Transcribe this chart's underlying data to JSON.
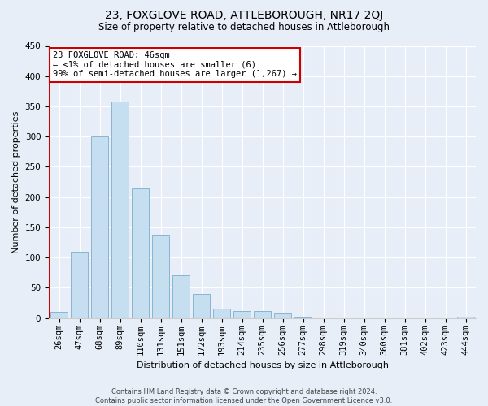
{
  "title": "23, FOXGLOVE ROAD, ATTLEBOROUGH, NR17 2QJ",
  "subtitle": "Size of property relative to detached houses in Attleborough",
  "xlabel": "Distribution of detached houses by size in Attleborough",
  "ylabel": "Number of detached properties",
  "footer_lines": [
    "Contains HM Land Registry data © Crown copyright and database right 2024.",
    "Contains public sector information licensed under the Open Government Licence v3.0."
  ],
  "bar_labels": [
    "26sqm",
    "47sqm",
    "68sqm",
    "89sqm",
    "110sqm",
    "131sqm",
    "151sqm",
    "172sqm",
    "193sqm",
    "214sqm",
    "235sqm",
    "256sqm",
    "277sqm",
    "298sqm",
    "319sqm",
    "340sqm",
    "360sqm",
    "381sqm",
    "402sqm",
    "423sqm",
    "444sqm"
  ],
  "bar_values": [
    10,
    110,
    300,
    358,
    214,
    136,
    70,
    40,
    16,
    12,
    12,
    7,
    1,
    0,
    0,
    0,
    0,
    0,
    0,
    0,
    2
  ],
  "bar_color": "#c5dff0",
  "bar_edge_color": "#8ab4d4",
  "ylim": [
    0,
    450
  ],
  "yticks": [
    0,
    50,
    100,
    150,
    200,
    250,
    300,
    350,
    400,
    450
  ],
  "annotation_box_color": "#ffffff",
  "annotation_border_color": "#cc0000",
  "annotation_line1": "23 FOXGLOVE ROAD: 46sqm",
  "annotation_line2": "← <1% of detached houses are smaller (6)",
  "annotation_line3": "99% of semi-detached houses are larger (1,267) →",
  "background_color": "#e8eef8",
  "grid_color": "#ffffff",
  "spine_color": "#cccccc",
  "title_fontsize": 10,
  "subtitle_fontsize": 8.5,
  "ylabel_fontsize": 8,
  "xlabel_fontsize": 8,
  "tick_fontsize": 7.5,
  "footer_fontsize": 6
}
